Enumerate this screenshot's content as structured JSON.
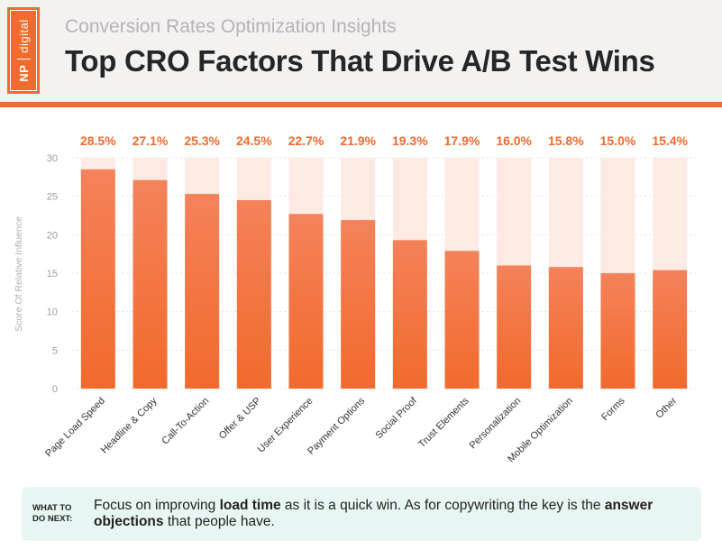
{
  "header": {
    "logo_np": "NP",
    "logo_digital": "digital",
    "subtitle": "Conversion Rates Optimization Insights",
    "title": "Top CRO Factors That Drive A/B Test Wins"
  },
  "chart_data": {
    "type": "bar",
    "ylabel": "Score Of Relative Influence",
    "ylim": [
      0,
      30
    ],
    "yticks": [
      0,
      5,
      10,
      15,
      20,
      25,
      30
    ],
    "categories": [
      "Page Load Speed",
      "Headline & Copy",
      "Call-To-Action",
      "Offer & USP",
      "User Experience",
      "Payment Options",
      "Social Proof",
      "Trust Elements",
      "Personalization",
      "Mobile Optimization",
      "Forms",
      "Other"
    ],
    "values": [
      28.5,
      27.1,
      25.3,
      24.5,
      22.7,
      21.9,
      19.3,
      17.9,
      16.0,
      15.8,
      15.0,
      15.4
    ],
    "value_labels": [
      "28.5%",
      "27.1%",
      "25.3%",
      "24.5%",
      "22.7%",
      "21.9%",
      "19.3%",
      "17.9%",
      "16.0%",
      "15.8%",
      "15.0%",
      "15.4%"
    ],
    "grid": true,
    "colors": {
      "bar_top": "#f4825a",
      "bar_bottom": "#f26a2c",
      "track": "#fdebe3",
      "label": "#f26a2c"
    }
  },
  "callout": {
    "label_line1": "WHAT TO",
    "label_line2": "DO NEXT:",
    "text_1": "Focus on improving ",
    "bold_1": "load time",
    "text_2": " as it is a quick win. As for copywriting the key is the ",
    "bold_2": "answer objections",
    "text_3": " that people have."
  }
}
